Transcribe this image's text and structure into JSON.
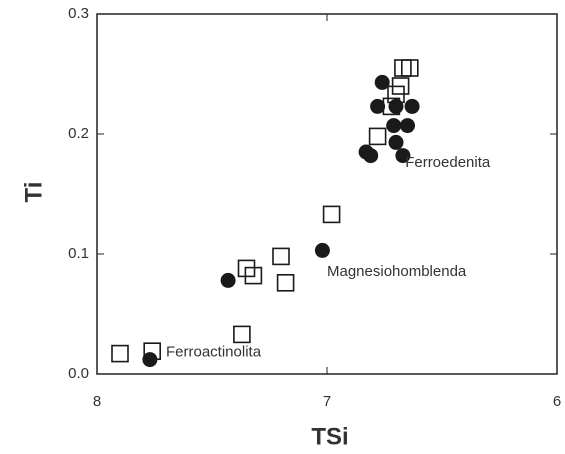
{
  "chart_data": {
    "type": "scatter",
    "xlabel": "TSi",
    "ylabel": "Ti",
    "xlim": [
      8,
      6
    ],
    "ylim": [
      0,
      0.3
    ],
    "xticks": [
      8,
      7,
      6
    ],
    "yticks": [
      {
        "value": 0,
        "label": "0.0"
      },
      0.1,
      0.2,
      0.3
    ],
    "series": [
      {
        "marker": "circle",
        "color": "#1a1a1a",
        "x": [
          7.77,
          7.43,
          7.02,
          6.83,
          6.81,
          6.76,
          6.78,
          6.7,
          6.63,
          6.71,
          6.65,
          6.7,
          6.67
        ],
        "values": [
          0.012,
          0.078,
          0.103,
          0.185,
          0.182,
          0.243,
          0.223,
          0.223,
          0.223,
          0.207,
          0.207,
          0.193,
          0.182
        ]
      },
      {
        "marker": "square",
        "color": "#1a1a1a",
        "x": [
          7.9,
          7.76,
          7.37,
          7.35,
          7.32,
          7.2,
          7.18,
          6.98,
          6.78,
          6.72,
          6.68,
          6.67,
          6.64,
          6.7
        ],
        "values": [
          0.017,
          0.019,
          0.033,
          0.088,
          0.082,
          0.098,
          0.076,
          0.133,
          0.198,
          0.223,
          0.24,
          0.255,
          0.255,
          0.233
        ]
      }
    ],
    "annotations": [
      {
        "text": "Ferroedenita",
        "x": 6.66,
        "y": 0.176
      },
      {
        "text": "Magnesiohomblenda",
        "x": 7.0,
        "y": 0.085
      },
      {
        "text": "Ferroactinolita",
        "x": 7.7,
        "y": 0.018
      }
    ]
  }
}
